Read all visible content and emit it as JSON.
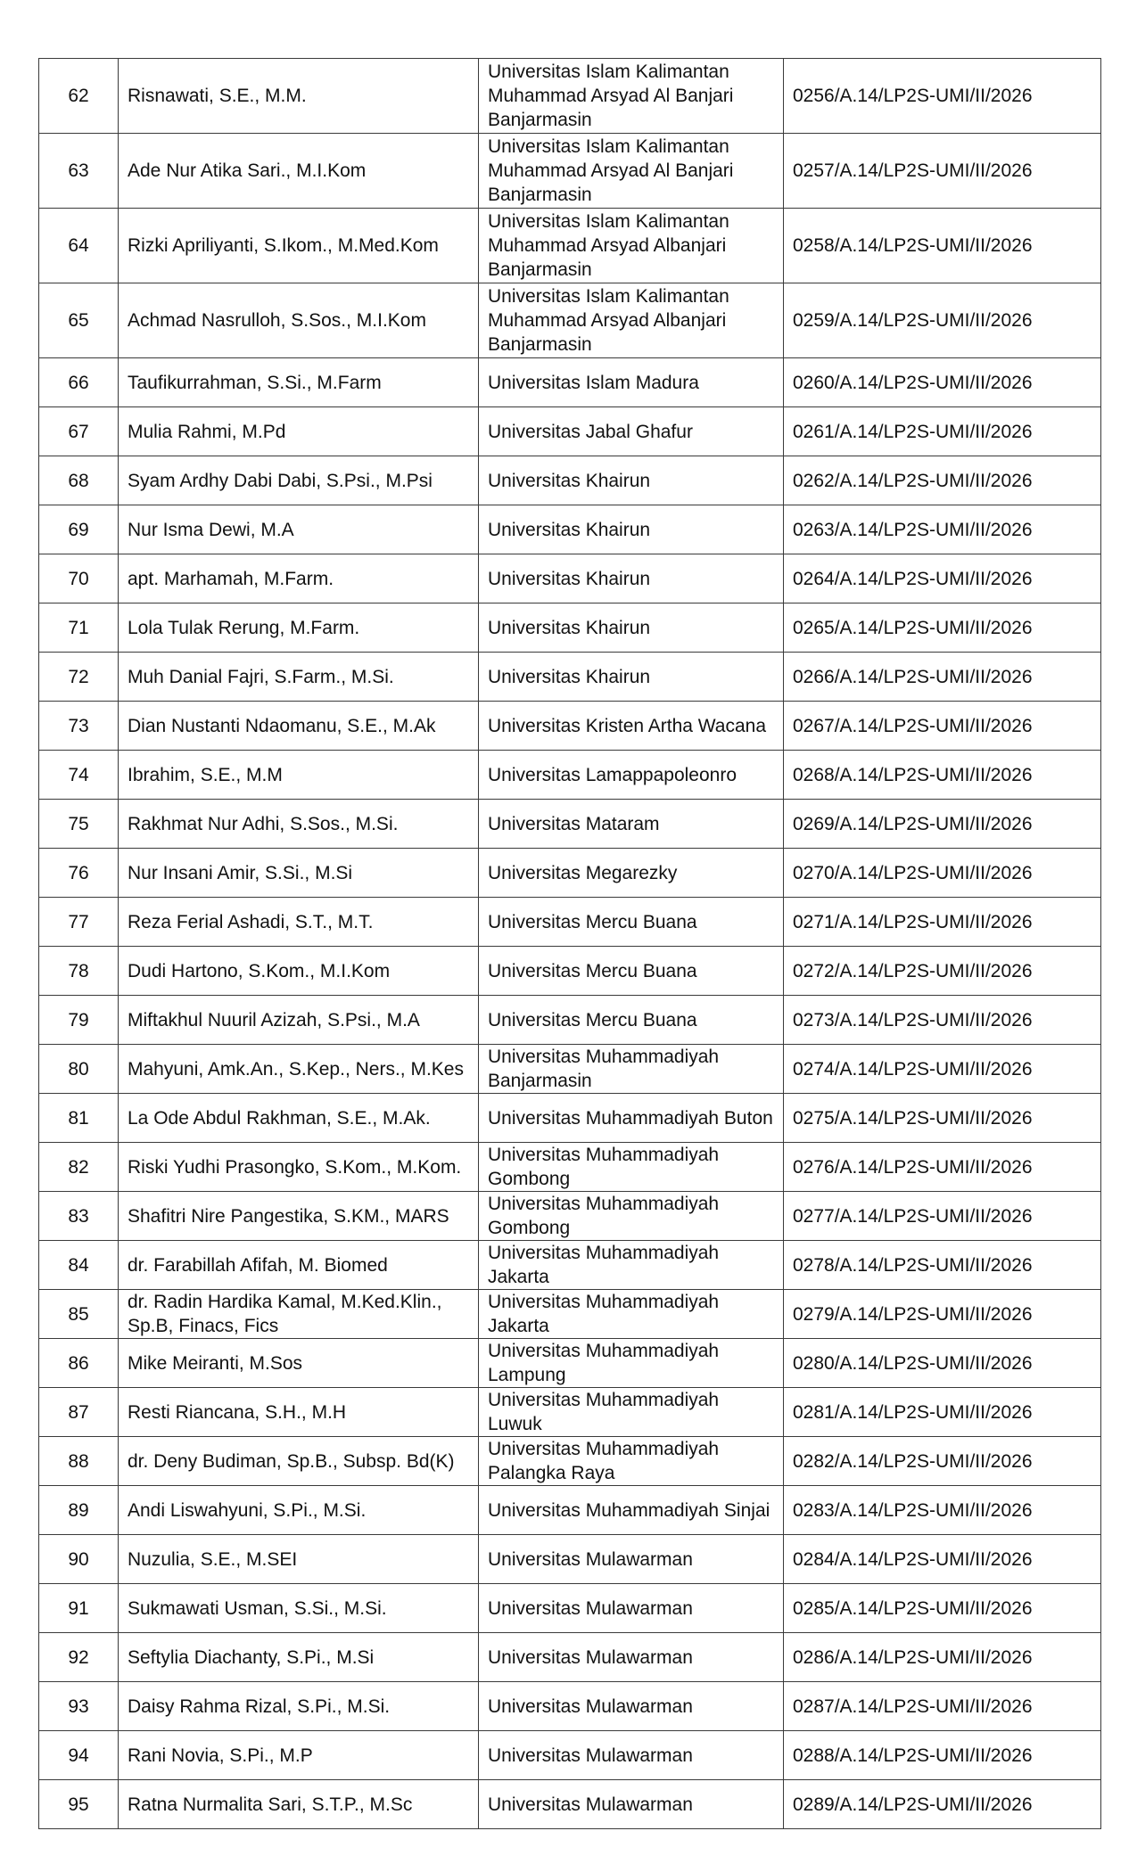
{
  "rows": [
    {
      "no": "62",
      "name": "Risnawati, S.E., M.M.",
      "institution": "Universitas Islam Kalimantan Muhammad Arsyad Al Banjari Banjarmasin",
      "letter": "0256/A.14/LP2S-UMI/II/2026"
    },
    {
      "no": "63",
      "name": "Ade Nur Atika Sari., M.I.Kom",
      "institution": "Universitas Islam Kalimantan Muhammad Arsyad Al Banjari Banjarmasin",
      "letter": "0257/A.14/LP2S-UMI/II/2026"
    },
    {
      "no": "64",
      "name": "Rizki Apriliyanti, S.Ikom., M.Med.Kom",
      "institution": "Universitas Islam Kalimantan Muhammad Arsyad Albanjari Banjarmasin",
      "letter": "0258/A.14/LP2S-UMI/II/2026"
    },
    {
      "no": "65",
      "name": "Achmad Nasrulloh, S.Sos., M.I.Kom",
      "institution": "Universitas Islam Kalimantan Muhammad Arsyad Albanjari Banjarmasin",
      "letter": "0259/A.14/LP2S-UMI/II/2026"
    },
    {
      "no": "66",
      "name": "Taufikurrahman, S.Si., M.Farm",
      "institution": "Universitas Islam Madura",
      "letter": "0260/A.14/LP2S-UMI/II/2026"
    },
    {
      "no": "67",
      "name": "Mulia Rahmi, M.Pd",
      "institution": "Universitas Jabal Ghafur",
      "letter": "0261/A.14/LP2S-UMI/II/2026"
    },
    {
      "no": "68",
      "name": "Syam Ardhy Dabi Dabi, S.Psi., M.Psi",
      "institution": "Universitas Khairun",
      "letter": "0262/A.14/LP2S-UMI/II/2026"
    },
    {
      "no": "69",
      "name": "Nur Isma Dewi, M.A",
      "institution": "Universitas Khairun",
      "letter": "0263/A.14/LP2S-UMI/II/2026"
    },
    {
      "no": "70",
      "name": "apt. Marhamah, M.Farm.",
      "institution": "Universitas Khairun",
      "letter": "0264/A.14/LP2S-UMI/II/2026"
    },
    {
      "no": "71",
      "name": "Lola Tulak Rerung, M.Farm.",
      "institution": "Universitas Khairun",
      "letter": "0265/A.14/LP2S-UMI/II/2026"
    },
    {
      "no": "72",
      "name": "Muh Danial Fajri, S.Farm., M.Si.",
      "institution": "Universitas Khairun",
      "letter": "0266/A.14/LP2S-UMI/II/2026"
    },
    {
      "no": "73",
      "name": "Dian Nustanti Ndaomanu, S.E., M.Ak",
      "institution": "Universitas Kristen Artha Wacana",
      "letter": "0267/A.14/LP2S-UMI/II/2026"
    },
    {
      "no": "74",
      "name": "Ibrahim, S.E., M.M",
      "institution": "Universitas Lamappapoleonro",
      "letter": "0268/A.14/LP2S-UMI/II/2026"
    },
    {
      "no": "75",
      "name": "Rakhmat Nur Adhi, S.Sos., M.Si.",
      "institution": "Universitas Mataram",
      "letter": "0269/A.14/LP2S-UMI/II/2026"
    },
    {
      "no": "76",
      "name": "Nur Insani Amir, S.Si., M.Si",
      "institution": "Universitas Megarezky",
      "letter": "0270/A.14/LP2S-UMI/II/2026"
    },
    {
      "no": "77",
      "name": "Reza Ferial Ashadi, S.T., M.T.",
      "institution": "Universitas Mercu Buana",
      "letter": "0271/A.14/LP2S-UMI/II/2026"
    },
    {
      "no": "78",
      "name": "Dudi Hartono, S.Kom., M.I.Kom",
      "institution": "Universitas Mercu Buana",
      "letter": "0272/A.14/LP2S-UMI/II/2026"
    },
    {
      "no": "79",
      "name": "Miftakhul Nuuril Azizah, S.Psi., M.A",
      "institution": "Universitas Mercu Buana",
      "letter": "0273/A.14/LP2S-UMI/II/2026"
    },
    {
      "no": "80",
      "name": "Mahyuni, Amk.An., S.Kep., Ners., M.Kes",
      "institution": "Universitas Muhammadiyah Banjarmasin",
      "letter": "0274/A.14/LP2S-UMI/II/2026"
    },
    {
      "no": "81",
      "name": "La Ode Abdul Rakhman, S.E., M.Ak.",
      "institution": "Universitas Muhammadiyah Buton",
      "letter": "0275/A.14/LP2S-UMI/II/2026"
    },
    {
      "no": "82",
      "name": "Riski Yudhi Prasongko, S.Kom., M.Kom.",
      "institution": "Universitas Muhammadiyah Gombong",
      "letter": "0276/A.14/LP2S-UMI/II/2026"
    },
    {
      "no": "83",
      "name": "Shafitri Nire Pangestika, S.KM., MARS",
      "institution": "Universitas Muhammadiyah Gombong",
      "letter": "0277/A.14/LP2S-UMI/II/2026"
    },
    {
      "no": "84",
      "name": "dr. Farabillah Afifah, M. Biomed",
      "institution": "Universitas Muhammadiyah Jakarta",
      "letter": "0278/A.14/LP2S-UMI/II/2026"
    },
    {
      "no": "85",
      "name": "dr. Radin Hardika Kamal, M.Ked.Klin., Sp.B, Finacs, Fics",
      "institution": "Universitas Muhammadiyah Jakarta",
      "letter": "0279/A.14/LP2S-UMI/II/2026"
    },
    {
      "no": "86",
      "name": "Mike Meiranti, M.Sos",
      "institution": "Universitas Muhammadiyah Lampung",
      "letter": "0280/A.14/LP2S-UMI/II/2026"
    },
    {
      "no": "87",
      "name": "Resti Riancana, S.H., M.H",
      "institution": "Universitas Muhammadiyah Luwuk",
      "letter": "0281/A.14/LP2S-UMI/II/2026"
    },
    {
      "no": "88",
      "name": "dr. Deny Budiman, Sp.B., Subsp. Bd(K)",
      "institution": "Universitas Muhammadiyah Palangka Raya",
      "letter": "0282/A.14/LP2S-UMI/II/2026"
    },
    {
      "no": "89",
      "name": "Andi Liswahyuni, S.Pi., M.Si.",
      "institution": "Universitas Muhammadiyah Sinjai",
      "letter": "0283/A.14/LP2S-UMI/II/2026"
    },
    {
      "no": "90",
      "name": "Nuzulia, S.E., M.SEI",
      "institution": "Universitas Mulawarman",
      "letter": "0284/A.14/LP2S-UMI/II/2026"
    },
    {
      "no": "91",
      "name": "Sukmawati Usman, S.Si., M.Si.",
      "institution": "Universitas Mulawarman",
      "letter": "0285/A.14/LP2S-UMI/II/2026"
    },
    {
      "no": "92",
      "name": "Seftylia Diachanty, S.Pi., M.Si",
      "institution": "Universitas Mulawarman",
      "letter": "0286/A.14/LP2S-UMI/II/2026"
    },
    {
      "no": "93",
      "name": "Daisy Rahma Rizal, S.Pi., M.Si.",
      "institution": "Universitas Mulawarman",
      "letter": "0287/A.14/LP2S-UMI/II/2026"
    },
    {
      "no": "94",
      "name": "Rani Novia, S.Pi., M.P",
      "institution": "Universitas Mulawarman",
      "letter": "0288/A.14/LP2S-UMI/II/2026"
    },
    {
      "no": "95",
      "name": "Ratna Nurmalita Sari, S.T.P., M.Sc",
      "institution": "Universitas Mulawarman",
      "letter": "0289/A.14/LP2S-UMI/II/2026"
    }
  ]
}
